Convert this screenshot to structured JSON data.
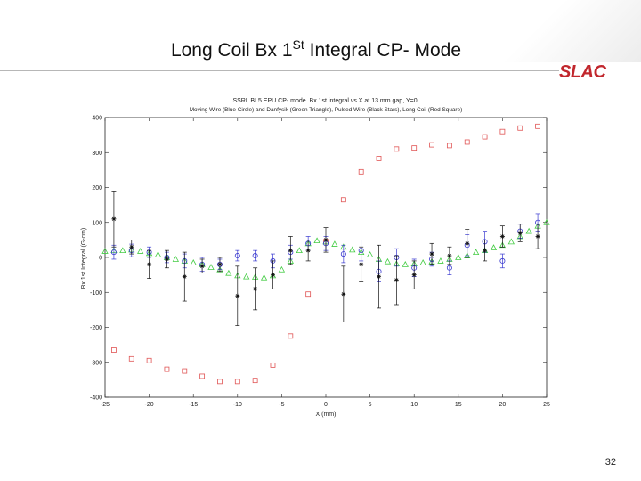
{
  "slide": {
    "title_main": "Long Coil Bx 1",
    "title_sup": "St",
    "title_rest": " Integral CP- Mode",
    "logo": "SLAC",
    "page_number": "32"
  },
  "colors": {
    "blue_circle": "#3a3ad0",
    "green_triangle": "#44cc44",
    "black_star": "#111111",
    "red_square": "#e05555",
    "slac_red": "#c1272d"
  },
  "chart_data": {
    "type": "scatter",
    "title": "SSRL BL5 EPU CP- mode. Bx 1st integral vs X at 13 mm gap, Y=0.",
    "subtitle": "Moving Wire (Blue Circle) and Danfysik (Green Triangle), Pulsed Wire (Black Stars), Long Coil (Red Square)",
    "xlabel": "X (mm)",
    "ylabel": "Bx 1st Integral (G-cm)",
    "xlim": [
      -25,
      25
    ],
    "ylim": [
      -400,
      400
    ],
    "xticks": [
      "-25",
      "-20",
      "-15",
      "-10",
      "-5",
      "0",
      "5",
      "10",
      "15",
      "20",
      "25"
    ],
    "yticks": [
      "400",
      "300",
      "200",
      "100",
      "0",
      "-100",
      "-200",
      "-300",
      "-400"
    ],
    "grid": false,
    "series": [
      {
        "marker": "square",
        "color": "#e05555",
        "x": [
          -24,
          -22,
          -20,
          -18,
          -16,
          -14,
          -12,
          -10,
          -8,
          -6,
          -4,
          -2,
          0,
          2,
          4,
          6,
          8,
          10,
          12,
          14,
          16,
          18,
          20,
          22,
          24
        ],
        "y": [
          -265,
          -290,
          -295,
          -320,
          -325,
          -340,
          -355,
          -355,
          -352,
          -308,
          -225,
          -105,
          45,
          165,
          245,
          283,
          310,
          313,
          322,
          320,
          330,
          345,
          360,
          370,
          375
        ]
      },
      {
        "marker": "triangle",
        "color": "#44cc44",
        "x": [
          -25,
          -24,
          -23,
          -22,
          -21,
          -20,
          -19,
          -18,
          -17,
          -16,
          -15,
          -14,
          -13,
          -12,
          -11,
          -10,
          -9,
          -8,
          -7,
          -6,
          -5,
          -4,
          -3,
          -2,
          -1,
          0,
          1,
          2,
          3,
          4,
          5,
          6,
          7,
          8,
          9,
          10,
          11,
          12,
          13,
          14,
          15,
          16,
          17,
          18,
          19,
          20,
          21,
          22,
          23,
          24,
          25
        ],
        "y": [
          18,
          20,
          20,
          22,
          18,
          12,
          8,
          0,
          -5,
          -10,
          -15,
          -20,
          -28,
          -35,
          -45,
          -52,
          -55,
          -56,
          -58,
          -52,
          -35,
          -10,
          20,
          40,
          48,
          45,
          38,
          30,
          22,
          15,
          8,
          -5,
          -12,
          -18,
          -20,
          -18,
          -15,
          -12,
          -10,
          -5,
          0,
          5,
          15,
          20,
          28,
          35,
          45,
          60,
          75,
          90,
          100
        ]
      },
      {
        "marker": "circle",
        "color": "#3a3ad0",
        "x": [
          -24,
          -22,
          -20,
          -18,
          -16,
          -14,
          -12,
          -10,
          -8,
          -6,
          -4,
          -2,
          0,
          2,
          4,
          6,
          8,
          10,
          12,
          14,
          16,
          18,
          20,
          22,
          24
        ],
        "y": [
          15,
          20,
          15,
          0,
          -10,
          -20,
          -20,
          5,
          5,
          -10,
          15,
          40,
          40,
          10,
          20,
          -40,
          0,
          -30,
          -5,
          -30,
          35,
          45,
          -10,
          75,
          100
        ],
        "err": [
          20,
          18,
          15,
          15,
          20,
          20,
          15,
          15,
          15,
          20,
          20,
          20,
          20,
          25,
          30,
          30,
          25,
          25,
          20,
          20,
          30,
          30,
          20,
          20,
          25
        ]
      },
      {
        "marker": "star",
        "color": "#111111",
        "x": [
          -24,
          -22,
          -20,
          -18,
          -16,
          -14,
          -12,
          -10,
          -8,
          -6,
          -4,
          -2,
          0,
          2,
          4,
          6,
          8,
          10,
          12,
          14,
          16,
          18,
          20,
          22,
          24
        ],
        "y": [
          110,
          30,
          -20,
          -5,
          -55,
          -25,
          -20,
          -110,
          -90,
          -50,
          20,
          20,
          50,
          -105,
          -20,
          -55,
          -65,
          -50,
          10,
          5,
          40,
          20,
          60,
          70,
          60
        ],
        "err": [
          80,
          20,
          40,
          25,
          70,
          20,
          20,
          85,
          60,
          40,
          40,
          30,
          35,
          80,
          50,
          90,
          70,
          40,
          30,
          25,
          40,
          30,
          30,
          25,
          35
        ]
      }
    ]
  }
}
